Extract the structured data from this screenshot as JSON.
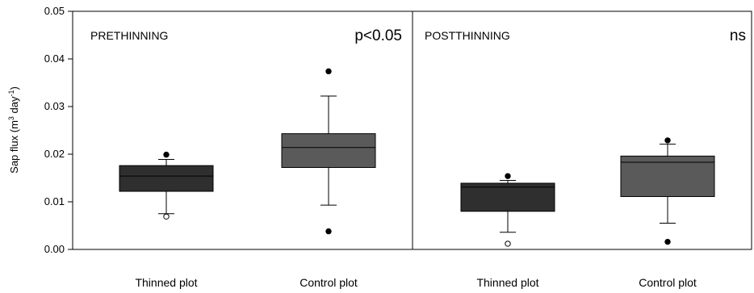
{
  "chart_data": {
    "type": "box",
    "ylabel_base": "Sap flux (m",
    "ylabel_sup1": "3",
    "ylabel_mid": " day",
    "ylabel_sup2": "-1",
    "ylabel_end": ")",
    "ylim": [
      0,
      0.05
    ],
    "yticks": [
      0.0,
      0.01,
      0.02,
      0.03,
      0.04,
      0.05
    ],
    "ytick_labels": [
      "0.00",
      "0.01",
      "0.02",
      "0.03",
      "0.04",
      "0.05"
    ],
    "grid": false,
    "panels": [
      {
        "title": "PRETHINNING",
        "significance": "p<0.05",
        "groups": [
          {
            "label": "Thinned plot",
            "whisker_low": 0.0075,
            "q1": 0.0122,
            "median": 0.0154,
            "q3": 0.0176,
            "whisker_high": 0.0189,
            "color": "#2f2f2f",
            "outliers": [
              {
                "value": 0.0199,
                "filled": true
              },
              {
                "value": 0.0069,
                "filled": false
              }
            ]
          },
          {
            "label": "Control plot",
            "whisker_low": 0.0093,
            "q1": 0.0172,
            "median": 0.0214,
            "q3": 0.0243,
            "whisker_high": 0.0322,
            "color": "#5a5a5a",
            "outliers": [
              {
                "value": 0.0374,
                "filled": true
              },
              {
                "value": 0.0038,
                "filled": true
              }
            ]
          }
        ]
      },
      {
        "title": "POSTTHINNING",
        "significance": "ns",
        "groups": [
          {
            "label": "Thinned plot",
            "whisker_low": 0.0036,
            "q1": 0.008,
            "median": 0.0131,
            "q3": 0.0139,
            "whisker_high": 0.0145,
            "color": "#2f2f2f",
            "outliers": [
              {
                "value": 0.0154,
                "filled": true
              },
              {
                "value": 0.0012,
                "filled": false
              }
            ]
          },
          {
            "label": "Control plot",
            "whisker_low": 0.0055,
            "q1": 0.0111,
            "median": 0.0183,
            "q3": 0.0196,
            "whisker_high": 0.0221,
            "color": "#5a5a5a",
            "outliers": [
              {
                "value": 0.0229,
                "filled": true
              },
              {
                "value": 0.0016,
                "filled": true
              }
            ]
          }
        ]
      }
    ]
  }
}
